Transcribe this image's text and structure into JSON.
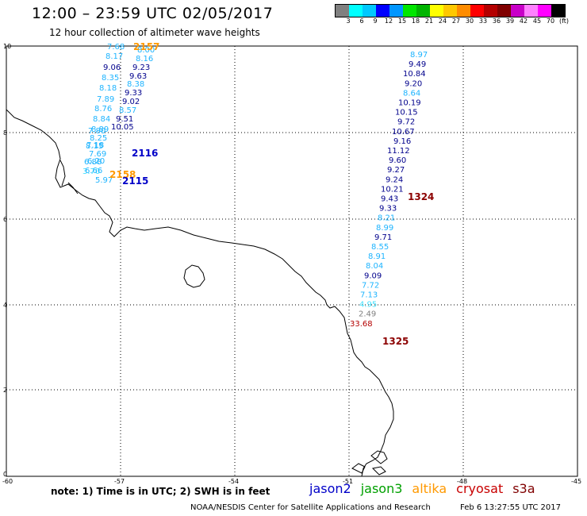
{
  "header": {
    "title": "12:00 – 23:59 UTC 02/05/2017",
    "subtitle": "12 hour collection of altimeter wave heights"
  },
  "colorbar": {
    "colors": [
      "#808080",
      "#00ffff",
      "#00c8ff",
      "#0000ff",
      "#0096ff",
      "#00e600",
      "#00b400",
      "#ffff00",
      "#ffc800",
      "#ff8c00",
      "#ff0000",
      "#b40000",
      "#800000",
      "#c800c8",
      "#ff80ff",
      "#ff00ff",
      "#000000"
    ],
    "labels": [
      "3",
      "6",
      "9",
      "12",
      "15",
      "18",
      "21",
      "24",
      "27",
      "30",
      "33",
      "36",
      "39",
      "42",
      "45",
      "70",
      "(ft)"
    ]
  },
  "axes": {
    "x_ticks": [
      "-60",
      "-57",
      "-54",
      "-51",
      "-48",
      "-45"
    ],
    "y_ticks": [
      "0",
      "2",
      "4",
      "6",
      "8",
      "10"
    ]
  },
  "tracks": [
    {
      "name": "west",
      "points": [
        {
          "v": "7.68",
          "c": "#1eb4ff"
        },
        {
          "v": "8.00",
          "c": "#1eb4ff"
        },
        {
          "v": "8.17",
          "c": "#1eb4ff"
        },
        {
          "v": "8.16",
          "c": "#1eb4ff"
        },
        {
          "v": "9.06",
          "c": "#00008c"
        },
        {
          "v": "9.23",
          "c": "#00008c"
        },
        {
          "v": "8.35",
          "c": "#1eb4ff"
        },
        {
          "v": "9.63",
          "c": "#00008c"
        },
        {
          "v": "8.18",
          "c": "#1eb4ff"
        },
        {
          "v": "8.38",
          "c": "#1eb4ff"
        },
        {
          "v": "9.33",
          "c": "#00008c"
        },
        {
          "v": "7.89",
          "c": "#1eb4ff"
        },
        {
          "v": "9.02",
          "c": "#00008c"
        },
        {
          "v": "8.76",
          "c": "#1eb4ff"
        },
        {
          "v": "8.57",
          "c": "#1eb4ff"
        },
        {
          "v": "8.84",
          "c": "#1eb4ff"
        },
        {
          "v": "9.51",
          "c": "#00008c"
        },
        {
          "v": "8.89",
          "c": "#1eb4ff"
        },
        {
          "v": "10.05",
          "c": "#00008c"
        },
        {
          "v": "8.25",
          "c": "#1eb4ff"
        },
        {
          "v": "7.80",
          "c": "#1eb4ff"
        },
        {
          "v": "8.15",
          "c": "#1eb4ff"
        },
        {
          "v": "7.18",
          "c": "#1eb4ff"
        },
        {
          "v": "7.69",
          "c": "#1eb4ff"
        },
        {
          "v": "6.88",
          "c": "#1eb4ff"
        },
        {
          "v": "6.20",
          "c": "#1eb4ff"
        },
        {
          "v": "3.70",
          "c": "#40e0ff"
        },
        {
          "v": "6.66",
          "c": "#1eb4ff"
        },
        {
          "v": "5.97",
          "c": "#1eb4ff"
        }
      ]
    },
    {
      "name": "east",
      "points": [
        {
          "v": "8.97",
          "c": "#1eb4ff"
        },
        {
          "v": "9.49",
          "c": "#00008c"
        },
        {
          "v": "10.84",
          "c": "#00008c"
        },
        {
          "v": "9.20",
          "c": "#00008c"
        },
        {
          "v": "8.64",
          "c": "#1eb4ff"
        },
        {
          "v": "10.19",
          "c": "#00008c"
        },
        {
          "v": "10.15",
          "c": "#00008c"
        },
        {
          "v": "9.72",
          "c": "#00008c"
        },
        {
          "v": "10.67",
          "c": "#00008c"
        },
        {
          "v": "9.16",
          "c": "#00008c"
        },
        {
          "v": "11.12",
          "c": "#00008c"
        },
        {
          "v": "9.60",
          "c": "#00008c"
        },
        {
          "v": "9.27",
          "c": "#00008c"
        },
        {
          "v": "9.24",
          "c": "#00008c"
        },
        {
          "v": "10.21",
          "c": "#00008c"
        },
        {
          "v": "9.43",
          "c": "#00008c"
        },
        {
          "v": "9.33",
          "c": "#00008c"
        },
        {
          "v": "8.21",
          "c": "#1eb4ff"
        },
        {
          "v": "8.99",
          "c": "#1eb4ff"
        },
        {
          "v": "9.71",
          "c": "#00008c"
        },
        {
          "v": "8.55",
          "c": "#1eb4ff"
        },
        {
          "v": "8.91",
          "c": "#1eb4ff"
        },
        {
          "v": "8.04",
          "c": "#1eb4ff"
        },
        {
          "v": "9.09",
          "c": "#00008c"
        },
        {
          "v": "7.72",
          "c": "#1eb4ff"
        },
        {
          "v": "7.13",
          "c": "#1eb4ff"
        },
        {
          "v": "4.95",
          "c": "#40e0ff"
        },
        {
          "v": "2.49",
          "c": "#808080"
        },
        {
          "v": "33.68",
          "c": "#b40000"
        }
      ]
    }
  ],
  "pass_labels": [
    {
      "text": "2157",
      "c": "#ff9900"
    },
    {
      "text": "2116",
      "c": "#0000c8"
    },
    {
      "text": "2158",
      "c": "#ff9900"
    },
    {
      "text": "2115",
      "c": "#0000c8"
    },
    {
      "text": "1324",
      "c": "#8c0000"
    },
    {
      "text": "1325",
      "c": "#8c0000"
    }
  ],
  "note": "note:  1) Time is in UTC;  2) SWH is in feet",
  "legend": [
    {
      "text": "jason2",
      "c": "#0000c8"
    },
    {
      "text": "jason3",
      "c": "#00a000"
    },
    {
      "text": "altika",
      "c": "#ff9900"
    },
    {
      "text": "cryosat",
      "c": "#c80000"
    },
    {
      "text": "s3a",
      "c": "#800000"
    }
  ],
  "footer": {
    "left": "NOAA/NESDIS Center for Satellite Applications and Research",
    "right": "Feb  6 13:27:55 UTC 2017"
  }
}
